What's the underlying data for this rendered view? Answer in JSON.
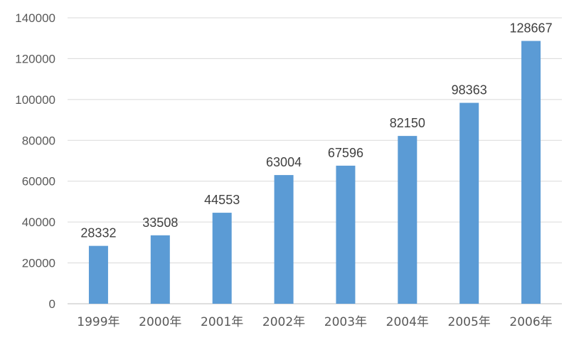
{
  "chart_data": {
    "type": "bar",
    "categories": [
      "1999年",
      "2000年",
      "2001年",
      "2002年",
      "2003年",
      "2004年",
      "2005年",
      "2006年"
    ],
    "values": [
      28332,
      33508,
      44553,
      63004,
      67596,
      82150,
      98363,
      128667
    ],
    "data_labels": [
      "28332",
      "33508",
      "44553",
      "63004",
      "67596",
      "82150",
      "98363",
      "128667"
    ],
    "title": "",
    "xlabel": "",
    "ylabel": "",
    "ylim": [
      0,
      140000
    ],
    "yticks": [
      0,
      20000,
      40000,
      60000,
      80000,
      100000,
      120000,
      140000
    ],
    "ytick_labels": [
      "0",
      "20000",
      "40000",
      "60000",
      "80000",
      "100000",
      "120000",
      "140000"
    ],
    "grid": true,
    "legend": "none",
    "bar_color": "#5b9bd5"
  }
}
